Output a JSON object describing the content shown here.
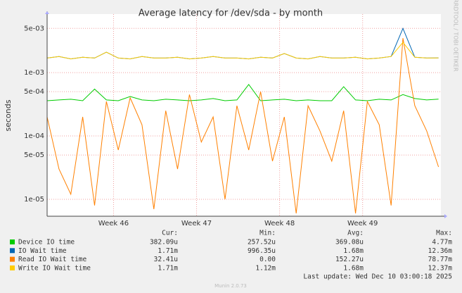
{
  "chart_data": {
    "type": "line",
    "title": "Average latency for /dev/sda - by month",
    "y_label": "seconds",
    "side_text": "RRDTOOL / TOBI OETIKER",
    "log_scale": true,
    "grid": true,
    "x": [
      0,
      1,
      2,
      3,
      4,
      5,
      6,
      7,
      8,
      9,
      10,
      11,
      12,
      13,
      14,
      15,
      16,
      17,
      18,
      19,
      20,
      21,
      22,
      23,
      24,
      25,
      26,
      27,
      28,
      29,
      30,
      31,
      32,
      33
    ],
    "xlim": [
      0,
      33.2
    ],
    "xticks": [
      {
        "value": 5.6,
        "label": "Week 46"
      },
      {
        "value": 12.6,
        "label": "Week 47"
      },
      {
        "value": 19.6,
        "label": "Week 48"
      },
      {
        "value": 26.6,
        "label": "Week 49"
      }
    ],
    "ylim": [
      5.4e-06,
      0.0084
    ],
    "yticks": [
      {
        "value": 1e-05,
        "label": "1e-05"
      },
      {
        "value": 5e-05,
        "label": "5e-05"
      },
      {
        "value": 0.0001,
        "label": "1e-04"
      },
      {
        "value": 0.0005,
        "label": "5e-04"
      },
      {
        "value": 0.001,
        "label": "1e-03"
      },
      {
        "value": 0.005,
        "label": "5e-03"
      }
    ],
    "stats_headers": [
      "Cur:",
      "Min:",
      "Avg:",
      "Max:"
    ],
    "series": [
      {
        "name": "Device IO time",
        "color": "#00cc00",
        "stats": [
          "382.09u",
          "257.52u",
          "369.08u",
          "4.77m"
        ],
        "values": [
          0.00036,
          0.00037,
          0.00038,
          0.00036,
          0.00055,
          0.00037,
          0.00036,
          0.00042,
          0.00037,
          0.00036,
          0.00038,
          0.00037,
          0.00036,
          0.00037,
          0.00039,
          0.00036,
          0.00037,
          0.00065,
          0.00036,
          0.00037,
          0.00038,
          0.00036,
          0.00037,
          0.00036,
          0.00036,
          0.0006,
          0.00037,
          0.00036,
          0.00038,
          0.00037,
          0.00045,
          0.00039,
          0.00037,
          0.00038209
        ]
      },
      {
        "name": "IO Wait time",
        "color": "#0066b3",
        "stats": [
          "1.71m",
          "996.35u",
          "1.68m",
          "12.36m"
        ],
        "values": [
          0.0017,
          0.0018,
          0.00165,
          0.00175,
          0.0017,
          0.0021,
          0.0017,
          0.00165,
          0.0018,
          0.0017,
          0.0017,
          0.00175,
          0.00165,
          0.0017,
          0.0018,
          0.0017,
          0.0017,
          0.00165,
          0.00175,
          0.0017,
          0.002,
          0.0017,
          0.00165,
          0.0018,
          0.0017,
          0.0017,
          0.00175,
          0.00165,
          0.0017,
          0.0018,
          0.005,
          0.00175,
          0.0017,
          0.00171
        ]
      },
      {
        "name": "Read IO Wait time",
        "color": "#ff8000",
        "stats": [
          "32.41u",
          "0.00",
          "152.27u",
          "78.77m"
        ],
        "values": [
          0.0002,
          3e-05,
          1.2e-05,
          0.0002,
          8e-06,
          0.00035,
          6e-05,
          0.0004,
          0.00015,
          7e-06,
          0.00025,
          3e-05,
          0.00045,
          8e-05,
          0.0002,
          1e-05,
          0.0003,
          6e-05,
          0.0005,
          4e-05,
          0.0002,
          6e-06,
          0.0003,
          0.00012,
          4e-05,
          0.00025,
          6e-06,
          0.00035,
          0.00015,
          8e-06,
          0.0035,
          0.0003,
          0.00012,
          3.241e-05
        ]
      },
      {
        "name": "Write IO Wait time",
        "color": "#ffcc00",
        "stats": [
          "1.71m",
          "1.12m",
          "1.68m",
          "12.37m"
        ],
        "values": [
          0.0017,
          0.0018,
          0.00165,
          0.00175,
          0.0017,
          0.0021,
          0.0017,
          0.00165,
          0.0018,
          0.0017,
          0.0017,
          0.00175,
          0.00165,
          0.0017,
          0.0018,
          0.0017,
          0.0017,
          0.00165,
          0.00175,
          0.0017,
          0.002,
          0.0017,
          0.00165,
          0.0018,
          0.0017,
          0.0017,
          0.00175,
          0.00165,
          0.0017,
          0.0018,
          0.003,
          0.00175,
          0.0017,
          0.00171
        ]
      }
    ],
    "last_update": "Last update: Wed Dec 10 03:00:18 2025",
    "footer": "Munin 2.0.73"
  }
}
